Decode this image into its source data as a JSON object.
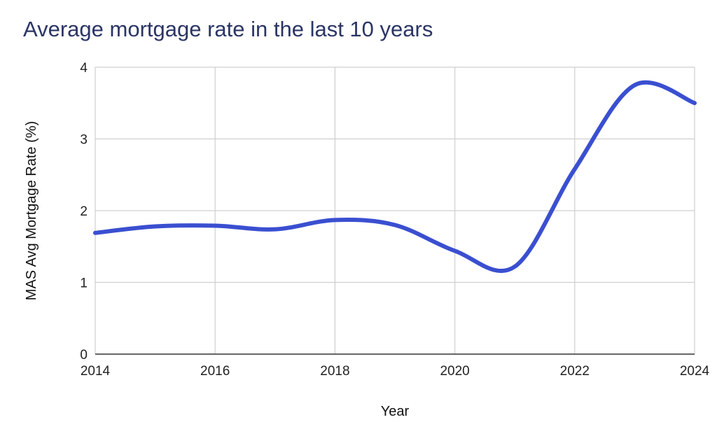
{
  "chart_data": {
    "type": "line",
    "title": "Average mortgage rate in the last 10 years",
    "xlabel": "Year",
    "ylabel": "MAS Avg Mortgage Rate (%)",
    "x_ticks": [
      "2014",
      "2016",
      "2018",
      "2020",
      "2022",
      "2024"
    ],
    "y_ticks": [
      "0",
      "1",
      "2",
      "3",
      "4"
    ],
    "xlim": [
      2014,
      2024
    ],
    "ylim": [
      0,
      4
    ],
    "grid": true,
    "legend": "none",
    "smooth": true,
    "series": [
      {
        "color": "#3a4fd0",
        "x": [
          2014,
          2015,
          2016,
          2017,
          2018,
          2019,
          2020,
          2021,
          2022,
          2023,
          2024
        ],
        "y": [
          1.69,
          1.78,
          1.79,
          1.74,
          1.87,
          1.8,
          1.44,
          1.22,
          2.58,
          3.75,
          3.5
        ]
      }
    ]
  }
}
